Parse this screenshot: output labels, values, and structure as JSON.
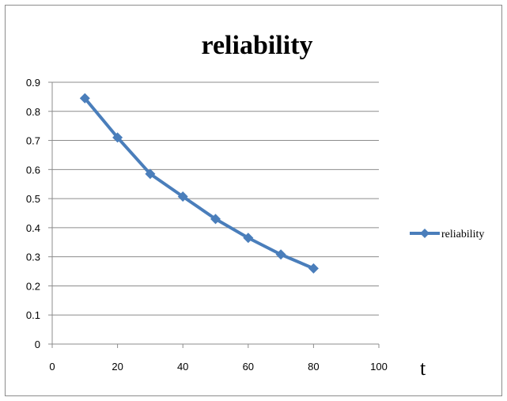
{
  "chart_data": {
    "type": "line",
    "title": "reliability",
    "xlabel": "t",
    "ylabel": "",
    "xlim": [
      0,
      100
    ],
    "ylim": [
      0,
      0.9
    ],
    "xticks": [
      "0",
      "20",
      "40",
      "60",
      "80",
      "100"
    ],
    "yticks": [
      "0",
      "0.1",
      "0.2",
      "0.3",
      "0.4",
      "0.5",
      "0.6",
      "0.7",
      "0.8",
      "0.9"
    ],
    "grid": "horizontal",
    "legend": "right",
    "series": [
      {
        "name": "reliability",
        "color": "#4a7ebb",
        "marker": "diamond",
        "x": [
          10,
          20,
          30,
          40,
          50,
          60,
          70,
          80
        ],
        "y": [
          0.845,
          0.71,
          0.585,
          0.507,
          0.43,
          0.365,
          0.308,
          0.26
        ]
      }
    ]
  }
}
